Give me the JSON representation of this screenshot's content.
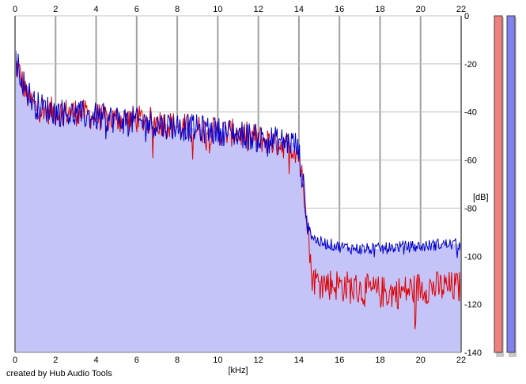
{
  "footer": {
    "credit": "created by Hub Audio Tools"
  },
  "colors": {
    "background": "#ffffff",
    "plot_fill": "#c4c4f8",
    "grid": "#a0a0a0",
    "left_channel": "#e00000",
    "right_channel": "#0000d0",
    "meter_left": "#f08080",
    "meter_right": "#8080f0"
  },
  "chart_data": {
    "type": "area",
    "title": "",
    "xlabel": "[kHz]",
    "ylabel": "[dB]",
    "xlim": [
      0,
      22
    ],
    "ylim": [
      -140,
      0
    ],
    "x_ticks": [
      "0",
      "2",
      "4",
      "6",
      "8",
      "10",
      "12",
      "14",
      "16",
      "18",
      "20",
      "22"
    ],
    "y_ticks": [
      "0",
      "-20",
      "-40",
      "-60",
      "-80",
      "-100",
      "-120",
      "-140"
    ],
    "grid": true,
    "series": [
      {
        "color": "#e00000",
        "x": [
          0,
          0.2,
          0.5,
          1,
          2,
          3,
          4,
          5,
          6,
          7,
          8,
          9,
          10,
          11,
          12,
          13,
          13.8,
          14.0,
          14.2,
          14.4,
          14.6,
          14.8,
          15,
          16,
          17,
          18,
          19,
          20,
          21,
          22
        ],
        "y": [
          -20,
          -23,
          -32,
          -38,
          -40,
          -40,
          -42,
          -43,
          -43,
          -44,
          -46,
          -47,
          -48,
          -49,
          -51,
          -53,
          -55,
          -58,
          -70,
          -82,
          -107,
          -110,
          -111,
          -112,
          -114,
          -115,
          -115,
          -113,
          -113,
          -113
        ]
      },
      {
        "color": "#0000d0",
        "x": [
          0,
          0.2,
          0.5,
          1,
          2,
          3,
          4,
          5,
          6,
          7,
          8,
          9,
          10,
          11,
          12,
          13,
          13.8,
          14.0,
          14.2,
          14.4,
          14.6,
          14.8,
          15,
          16,
          17,
          18,
          19,
          20,
          21,
          22
        ],
        "y": [
          -18,
          -22,
          -30,
          -37,
          -40,
          -41,
          -42,
          -43,
          -44,
          -45,
          -46,
          -47,
          -48,
          -49,
          -51,
          -52,
          -53,
          -57,
          -70,
          -82,
          -91,
          -93,
          -94,
          -96,
          -97,
          -97,
          -96,
          -96,
          -95,
          -95
        ]
      }
    ],
    "meters": [
      {
        "channel": "L",
        "color": "#f08080"
      },
      {
        "channel": "R",
        "color": "#8080f0"
      }
    ]
  }
}
